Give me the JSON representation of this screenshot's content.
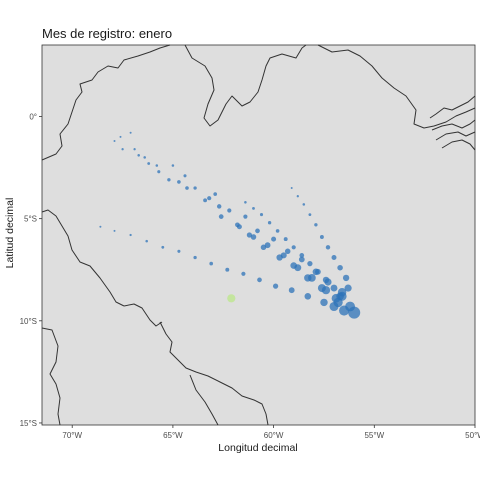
{
  "chart_data": {
    "type": "scatter",
    "title": "Mes de registro: enero",
    "xlabel": "Longitud decimal",
    "ylabel": "Latitud decimal",
    "xlim": [
      -71.5,
      -50
    ],
    "ylim": [
      -15.1,
      3.5
    ],
    "x_ticks": [
      {
        "value": -70,
        "label": "70°W"
      },
      {
        "value": -65,
        "label": "65°W"
      },
      {
        "value": -60,
        "label": "60°W"
      },
      {
        "value": -55,
        "label": "55°W"
      },
      {
        "value": -50,
        "label": "50°W"
      }
    ],
    "y_ticks": [
      {
        "value": 0,
        "label": "0°"
      },
      {
        "value": -5,
        "label": "5°S"
      },
      {
        "value": -10,
        "label": "10°S"
      },
      {
        "value": -15,
        "label": "15°S"
      }
    ],
    "grid": false,
    "panel_color": "#dedede",
    "coastline_color": "#333333",
    "point_colors": {
      "primary": "#2e73b8",
      "outlier": "#c2e59a"
    },
    "series": [
      {
        "color": "#2e73b8",
        "points": [
          {
            "x": -67.9,
            "y": -1.2,
            "s": 0.3
          },
          {
            "x": -67.6,
            "y": -1.0,
            "s": 0.3
          },
          {
            "x": -67.1,
            "y": -0.8,
            "s": 0.3
          },
          {
            "x": -67.5,
            "y": -1.6,
            "s": 0.4
          },
          {
            "x": -66.9,
            "y": -1.6,
            "s": 0.4
          },
          {
            "x": -66.7,
            "y": -1.9,
            "s": 0.5
          },
          {
            "x": -66.4,
            "y": -2.0,
            "s": 0.5
          },
          {
            "x": -66.2,
            "y": -2.3,
            "s": 0.6
          },
          {
            "x": -65.8,
            "y": -2.4,
            "s": 0.5
          },
          {
            "x": -65.7,
            "y": -2.7,
            "s": 0.7
          },
          {
            "x": -65.0,
            "y": -2.4,
            "s": 0.5
          },
          {
            "x": -65.2,
            "y": -3.1,
            "s": 0.8
          },
          {
            "x": -64.7,
            "y": -3.2,
            "s": 0.9
          },
          {
            "x": -64.4,
            "y": -2.9,
            "s": 0.7
          },
          {
            "x": -64.3,
            "y": -3.5,
            "s": 0.9
          },
          {
            "x": -63.9,
            "y": -3.5,
            "s": 0.8
          },
          {
            "x": -63.4,
            "y": -4.1,
            "s": 1.0
          },
          {
            "x": -63.2,
            "y": -4.0,
            "s": 1.1
          },
          {
            "x": -62.9,
            "y": -3.8,
            "s": 0.9
          },
          {
            "x": -62.7,
            "y": -4.4,
            "s": 1.2
          },
          {
            "x": -62.6,
            "y": -4.9,
            "s": 1.3
          },
          {
            "x": -62.2,
            "y": -4.6,
            "s": 1.1
          },
          {
            "x": -61.8,
            "y": -5.3,
            "s": 1.3
          },
          {
            "x": -61.7,
            "y": -5.4,
            "s": 1.4
          },
          {
            "x": -61.4,
            "y": -4.9,
            "s": 1.1
          },
          {
            "x": -61.2,
            "y": -5.8,
            "s": 1.5
          },
          {
            "x": -61.0,
            "y": -5.9,
            "s": 1.6
          },
          {
            "x": -60.8,
            "y": -5.6,
            "s": 1.3
          },
          {
            "x": -60.5,
            "y": -6.4,
            "s": 1.6
          },
          {
            "x": -60.3,
            "y": -6.3,
            "s": 1.7
          },
          {
            "x": -60.0,
            "y": -6.0,
            "s": 1.4
          },
          {
            "x": -59.7,
            "y": -6.9,
            "s": 1.9
          },
          {
            "x": -59.5,
            "y": -6.8,
            "s": 1.8
          },
          {
            "x": -59.3,
            "y": -6.6,
            "s": 1.6
          },
          {
            "x": -59.0,
            "y": -7.3,
            "s": 2.0
          },
          {
            "x": -58.8,
            "y": -7.4,
            "s": 2.1
          },
          {
            "x": -58.6,
            "y": -7.0,
            "s": 1.7
          },
          {
            "x": -58.3,
            "y": -7.9,
            "s": 2.3
          },
          {
            "x": -58.1,
            "y": -7.9,
            "s": 2.4
          },
          {
            "x": -57.9,
            "y": -7.6,
            "s": 2.0
          },
          {
            "x": -57.6,
            "y": -8.4,
            "s": 2.5
          },
          {
            "x": -57.4,
            "y": -8.5,
            "s": 2.6
          },
          {
            "x": -57.3,
            "y": -8.1,
            "s": 2.2
          },
          {
            "x": -56.9,
            "y": -8.9,
            "s": 2.8
          },
          {
            "x": -56.6,
            "y": -8.8,
            "s": 2.9
          },
          {
            "x": -56.8,
            "y": -9.1,
            "s": 3.0
          },
          {
            "x": -56.2,
            "y": -9.3,
            "s": 3.2
          },
          {
            "x": -56.5,
            "y": -9.5,
            "s": 3.3
          },
          {
            "x": -56.0,
            "y": -9.6,
            "s": 4.0
          },
          {
            "x": -56.6,
            "y": -8.6,
            "s": 2.7
          },
          {
            "x": -57.0,
            "y": -9.3,
            "s": 2.9
          },
          {
            "x": -61.4,
            "y": -4.2,
            "s": 0.5
          },
          {
            "x": -61.0,
            "y": -4.5,
            "s": 0.6
          },
          {
            "x": -60.6,
            "y": -4.8,
            "s": 0.7
          },
          {
            "x": -60.2,
            "y": -5.2,
            "s": 0.8
          },
          {
            "x": -59.8,
            "y": -5.6,
            "s": 0.9
          },
          {
            "x": -59.4,
            "y": -6.0,
            "s": 1.0
          },
          {
            "x": -59.0,
            "y": -6.4,
            "s": 1.1
          },
          {
            "x": -58.6,
            "y": -6.8,
            "s": 1.3
          },
          {
            "x": -58.2,
            "y": -7.2,
            "s": 1.5
          },
          {
            "x": -57.8,
            "y": -7.6,
            "s": 1.7
          },
          {
            "x": -57.4,
            "y": -8.0,
            "s": 1.9
          },
          {
            "x": -57.0,
            "y": -8.4,
            "s": 2.1
          },
          {
            "x": -56.7,
            "y": -8.8,
            "s": 2.4
          },
          {
            "x": -59.1,
            "y": -3.5,
            "s": 0.3
          },
          {
            "x": -58.8,
            "y": -3.9,
            "s": 0.4
          },
          {
            "x": -58.5,
            "y": -4.3,
            "s": 0.5
          },
          {
            "x": -58.2,
            "y": -4.8,
            "s": 0.6
          },
          {
            "x": -57.9,
            "y": -5.3,
            "s": 0.8
          },
          {
            "x": -57.6,
            "y": -5.9,
            "s": 1.0
          },
          {
            "x": -57.3,
            "y": -6.4,
            "s": 1.2
          },
          {
            "x": -57.0,
            "y": -6.9,
            "s": 1.4
          },
          {
            "x": -56.7,
            "y": -7.4,
            "s": 1.6
          },
          {
            "x": -56.4,
            "y": -7.9,
            "s": 1.9
          },
          {
            "x": -56.3,
            "y": -8.4,
            "s": 2.2
          },
          {
            "x": -68.6,
            "y": -5.4,
            "s": 0.3
          },
          {
            "x": -67.9,
            "y": -5.6,
            "s": 0.3
          },
          {
            "x": -67.1,
            "y": -5.8,
            "s": 0.4
          },
          {
            "x": -66.3,
            "y": -6.1,
            "s": 0.5
          },
          {
            "x": -65.5,
            "y": -6.4,
            "s": 0.6
          },
          {
            "x": -64.7,
            "y": -6.6,
            "s": 0.7
          },
          {
            "x": -63.9,
            "y": -6.9,
            "s": 0.8
          },
          {
            "x": -63.1,
            "y": -7.2,
            "s": 0.9
          },
          {
            "x": -62.3,
            "y": -7.5,
            "s": 1.0
          },
          {
            "x": -61.5,
            "y": -7.7,
            "s": 1.1
          },
          {
            "x": -60.7,
            "y": -8.0,
            "s": 1.3
          },
          {
            "x": -59.9,
            "y": -8.3,
            "s": 1.5
          },
          {
            "x": -59.1,
            "y": -8.5,
            "s": 1.7
          },
          {
            "x": -58.3,
            "y": -8.8,
            "s": 2.0
          },
          {
            "x": -57.5,
            "y": -9.1,
            "s": 2.3
          }
        ]
      },
      {
        "color": "#c2e59a",
        "points": [
          {
            "x": -62.1,
            "y": -8.9,
            "s": 2.6
          }
        ]
      }
    ]
  }
}
